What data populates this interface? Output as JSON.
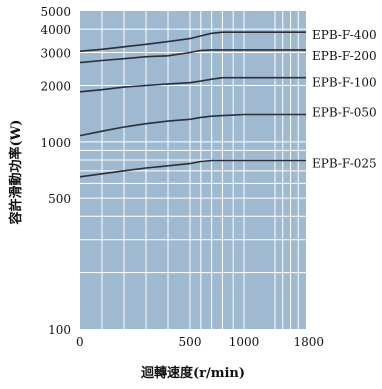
{
  "chart_data": {
    "type": "line",
    "title": "",
    "xlabel": "迴轉速度(r/min)",
    "ylabel": "容許滑動功率(W)",
    "y_scale": "log",
    "ylim": [
      100,
      5000
    ],
    "x_ticks": [
      "0",
      "500",
      "1000",
      "1800"
    ],
    "x_tick_values": [
      0,
      500,
      1000,
      1800
    ],
    "y_ticks": [
      "100",
      "500",
      "1000",
      "2000",
      "3000",
      "4000",
      "5000"
    ],
    "y_tick_values": [
      100,
      500,
      1000,
      2000,
      3000,
      4000,
      5000
    ],
    "grid": true,
    "series": [
      {
        "name": "EPB-F-400",
        "x": [
          0,
          100,
          200,
          300,
          400,
          500,
          600,
          700,
          800,
          900,
          1000,
          1100,
          1200,
          1300,
          1500,
          1800
        ],
        "y": [
          3050,
          3120,
          3220,
          3320,
          3430,
          3560,
          3680,
          3800,
          3850,
          3850,
          3850,
          3850,
          3850,
          3850,
          3850,
          3850
        ]
      },
      {
        "name": "EPB-F-200",
        "x": [
          0,
          100,
          200,
          300,
          400,
          500,
          600,
          700,
          800,
          900,
          1000,
          1100,
          1200,
          1300,
          1500,
          1800
        ],
        "y": [
          2650,
          2720,
          2780,
          2850,
          2880,
          3000,
          3080,
          3100,
          3100,
          3100,
          3100,
          3100,
          3100,
          3100,
          3100,
          3100
        ]
      },
      {
        "name": "EPB-F-100",
        "x": [
          0,
          100,
          200,
          300,
          400,
          500,
          600,
          700,
          800,
          900,
          1000,
          1100,
          1200,
          1300,
          1500,
          1800
        ],
        "y": [
          1850,
          1900,
          1960,
          2000,
          2040,
          2070,
          2110,
          2160,
          2200,
          2200,
          2200,
          2200,
          2200,
          2200,
          2200,
          2200
        ]
      },
      {
        "name": "EPB-F-050",
        "x": [
          0,
          100,
          200,
          300,
          400,
          500,
          600,
          700,
          800,
          900,
          1000,
          1100,
          1200,
          1300,
          1500,
          1800
        ],
        "y": [
          1080,
          1140,
          1200,
          1250,
          1290,
          1320,
          1350,
          1370,
          1380,
          1390,
          1400,
          1400,
          1400,
          1400,
          1400,
          1400
        ]
      },
      {
        "name": "EPB-F-025",
        "x": [
          0,
          100,
          200,
          300,
          400,
          500,
          600,
          700,
          800,
          900,
          1000,
          1100,
          1200,
          1300,
          1500,
          1800
        ],
        "y": [
          650,
          675,
          700,
          725,
          745,
          765,
          785,
          795,
          795,
          795,
          795,
          795,
          795,
          795,
          795,
          795
        ]
      }
    ]
  }
}
